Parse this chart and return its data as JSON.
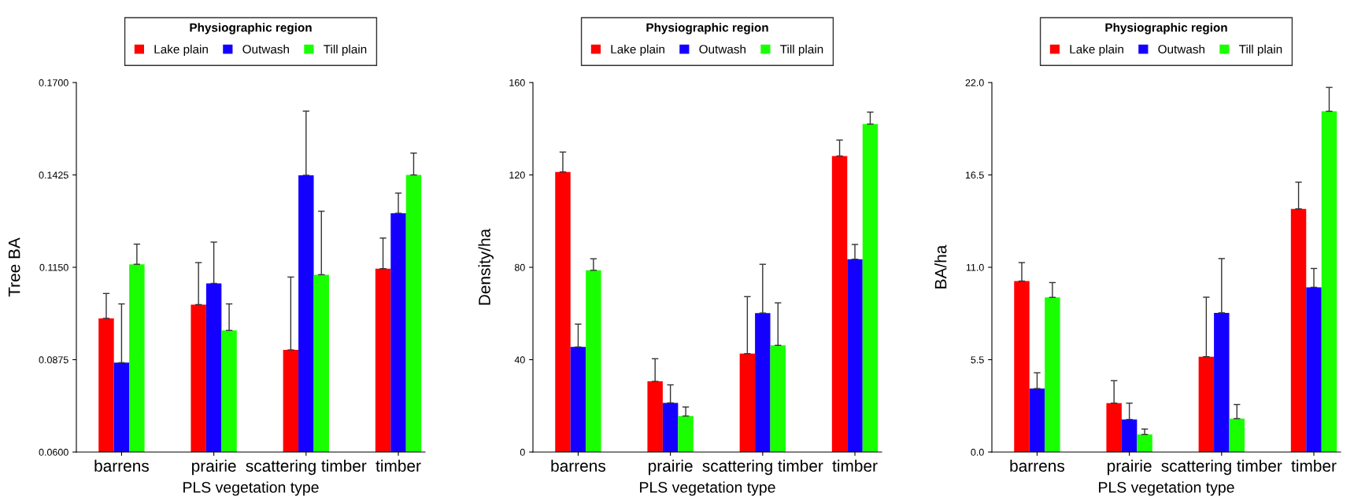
{
  "chart_data": [
    {
      "type": "bar",
      "categories": [
        "barrens",
        "prairie",
        "scattering timber",
        "timber"
      ],
      "xlabel": "PLS vegetation type",
      "ylabel": "Tree BA",
      "legend_title": "Physiographic region",
      "legend": "top",
      "grid": false,
      "ylim": [
        0.06,
        0.17
      ],
      "yticks": [
        {
          "value": 0.06,
          "label": "0.0600"
        },
        {
          "value": 0.0875,
          "label": "0.0875"
        },
        {
          "value": 0.115,
          "label": "0.1150"
        },
        {
          "value": 0.1425,
          "label": "0.1425"
        },
        {
          "value": 0.17,
          "label": "0.1700"
        }
      ],
      "series": [
        {
          "name": "Lake plain",
          "color": "#ff0000",
          "values": [
            0.0998,
            0.1039,
            0.0904,
            0.1146
          ],
          "errors": [
            [
              0.0998,
              0.1072
            ],
            [
              0.1039,
              0.1164
            ],
            [
              0.0904,
              0.1121
            ],
            [
              0.1146,
              0.1237
            ]
          ]
        },
        {
          "name": "Outwash",
          "color": "#1400ff",
          "values": [
            0.0866,
            0.1102,
            0.1424,
            0.1311
          ],
          "errors": [
            [
              0.0866,
              0.1041
            ],
            [
              0.1102,
              0.1225
            ],
            [
              0.1424,
              0.1615
            ],
            [
              0.1311,
              0.1371
            ]
          ]
        },
        {
          "name": "Till plain",
          "color": "#1aff00",
          "values": [
            0.1159,
            0.0962,
            0.1128,
            0.1425
          ],
          "errors": [
            [
              0.1159,
              0.1219
            ],
            [
              0.0962,
              0.1041
            ],
            [
              0.1128,
              0.1317
            ],
            [
              0.1425,
              0.149
            ]
          ]
        }
      ]
    },
    {
      "type": "bar",
      "categories": [
        "barrens",
        "prairie",
        "scattering timber",
        "timber"
      ],
      "xlabel": "PLS vegetation type",
      "ylabel": "Density/ha",
      "legend_title": "Physiographic region",
      "legend": "top",
      "grid": false,
      "ylim": [
        0,
        160
      ],
      "yticks": [
        0,
        40,
        80,
        120,
        160
      ],
      "series": [
        {
          "name": "Lake plain",
          "color": "#ff0000",
          "values": [
            121.3,
            30.6,
            42.6,
            128.2
          ],
          "errors": [
            [
              121.3,
              129.9
            ],
            [
              30.6,
              40.4
            ],
            [
              42.6,
              67.3
            ],
            [
              128.2,
              135.1
            ]
          ]
        },
        {
          "name": "Outwash",
          "color": "#1400ff",
          "values": [
            45.5,
            21.3,
            60.2,
            83.5
          ],
          "errors": [
            [
              45.5,
              55.4
            ],
            [
              21.3,
              29.1
            ],
            [
              60.2,
              81.3
            ],
            [
              83.5,
              89.9
            ]
          ]
        },
        {
          "name": "Till plain",
          "color": "#1aff00",
          "values": [
            78.7,
            15.6,
            46.2,
            142.0
          ],
          "errors": [
            [
              78.7,
              83.7
            ],
            [
              15.6,
              19.5
            ],
            [
              46.2,
              64.6
            ],
            [
              142.0,
              147.2
            ]
          ]
        }
      ]
    },
    {
      "type": "bar",
      "categories": [
        "barrens",
        "prairie",
        "scattering timber",
        "timber"
      ],
      "xlabel": "PLS vegetation type",
      "ylabel": "BA/ha",
      "legend_title": "Physiographic region",
      "legend": "top",
      "grid": false,
      "ylim": [
        0,
        22
      ],
      "yticks": [
        {
          "value": 0,
          "label": "0.0"
        },
        5.5,
        {
          "value": 11,
          "label": "11.0"
        },
        16.5,
        {
          "value": 22,
          "label": "22.0"
        }
      ],
      "series": [
        {
          "name": "Lake plain",
          "color": "#ff0000",
          "values": [
            10.18,
            2.91,
            5.68,
            14.48
          ],
          "errors": [
            [
              10.18,
              11.28
            ],
            [
              2.91,
              4.25
            ],
            [
              5.68,
              9.22
            ],
            [
              14.48,
              16.07
            ]
          ]
        },
        {
          "name": "Outwash",
          "color": "#1400ff",
          "values": [
            3.78,
            1.94,
            8.29,
            9.81
          ],
          "errors": [
            [
              3.78,
              4.72
            ],
            [
              1.94,
              2.91
            ],
            [
              8.29,
              11.52
            ],
            [
              9.81,
              10.93
            ]
          ]
        },
        {
          "name": "Till plain",
          "color": "#1aff00",
          "values": [
            9.21,
            1.05,
            1.99,
            20.29
          ],
          "errors": [
            [
              9.21,
              10.09
            ],
            [
              1.05,
              1.37
            ],
            [
              1.99,
              2.83
            ],
            [
              20.29,
              21.71
            ]
          ]
        }
      ]
    }
  ]
}
